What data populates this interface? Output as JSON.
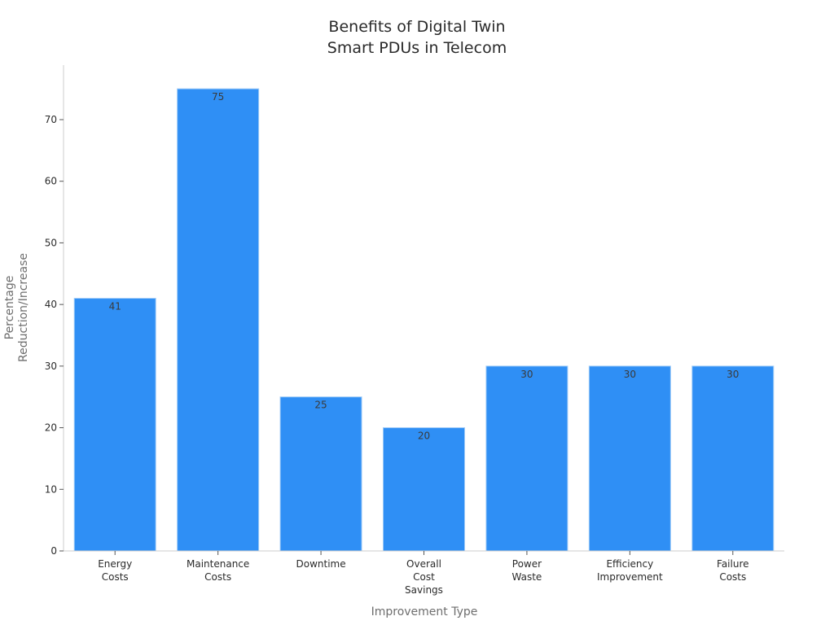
{
  "chart_data": {
    "type": "bar",
    "title": "Benefits of Digital Twin Smart PDUs in Telecom",
    "title_lines": [
      "Benefits of Digital Twin",
      "Smart PDUs in Telecom"
    ],
    "xlabel": "Improvement Type",
    "ylabel": "Percentage Reduction/Increase",
    "ylabel_lines": [
      "Percentage",
      "Reduction/Increase"
    ],
    "categories": [
      "Energy Costs",
      "Maintenance Costs",
      "Downtime",
      "Overall Cost Savings",
      "Power Waste",
      "Efficiency Improvement",
      "Failure Costs"
    ],
    "category_lines": [
      [
        "Energy",
        "Costs"
      ],
      [
        "Maintenance",
        "Costs"
      ],
      [
        "Downtime"
      ],
      [
        "Overall",
        "Cost",
        "Savings"
      ],
      [
        "Power",
        "Waste"
      ],
      [
        "Efficiency",
        "Improvement"
      ],
      [
        "Failure",
        "Costs"
      ]
    ],
    "values": [
      41,
      75,
      25,
      20,
      30,
      30,
      30
    ],
    "yticks": [
      0,
      10,
      20,
      30,
      40,
      50,
      60,
      70
    ],
    "ylim": [
      0,
      79
    ],
    "grid": false,
    "legend": null,
    "bar_color": "#2f8ff5",
    "bar_edge_color": "#9fcbf7",
    "data_labels": true
  }
}
